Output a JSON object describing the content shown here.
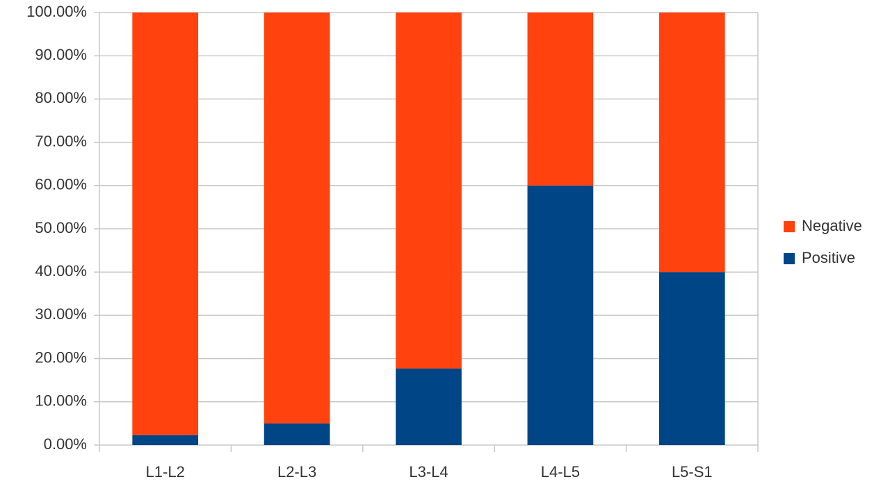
{
  "chart_data": {
    "type": "stacked-bar",
    "categories": [
      "L1-L2",
      "L2-L3",
      "L3-L4",
      "L4-L5",
      "L5-S1"
    ],
    "series": [
      {
        "name": "Positive",
        "color": "#004586",
        "values": [
          2.3,
          5,
          17.7,
          60,
          40
        ]
      },
      {
        "name": "Negative",
        "color": "#ff420e",
        "values": [
          97.7,
          95,
          82.3,
          40,
          60
        ]
      }
    ],
    "ylim": [
      0,
      100
    ],
    "yticks": [
      {
        "value": 0,
        "label": "0.00%"
      },
      {
        "value": 10,
        "label": "10.00%"
      },
      {
        "value": 20,
        "label": "20.00%"
      },
      {
        "value": 30,
        "label": "30.00%"
      },
      {
        "value": 40,
        "label": "40.00%"
      },
      {
        "value": 50,
        "label": "50.00%"
      },
      {
        "value": 60,
        "label": "60.00%"
      },
      {
        "value": 70,
        "label": "70.00%"
      },
      {
        "value": 80,
        "label": "80.00%"
      },
      {
        "value": 90,
        "label": "90.00%"
      },
      {
        "value": 100,
        "label": "100.00%"
      }
    ],
    "grid": true,
    "legend": "right"
  }
}
